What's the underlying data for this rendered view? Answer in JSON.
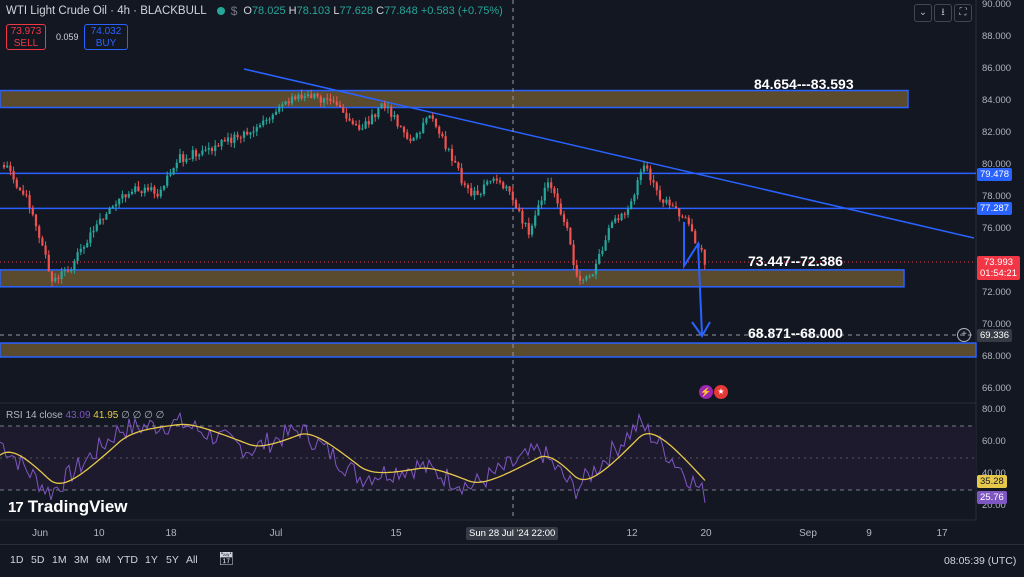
{
  "legend": {
    "symbol": "WTI Light Crude Oil · 4h · BLACKBULL",
    "open_label": "O",
    "open": "78.025",
    "high_label": "H",
    "high": "78.103",
    "low_label": "L",
    "low": "77.628",
    "close_label": "C",
    "close": "77.848",
    "change": "+0.583 (+0.75%)"
  },
  "trade": {
    "sell_price": "73.973",
    "sell_label": "SELL",
    "spread": "0.059",
    "buy_price": "74.032",
    "buy_label": "BUY"
  },
  "zones": {
    "top": "84.654---83.593",
    "mid": "73.447--72.386",
    "low": "68.871--68.000"
  },
  "price_axis": {
    "ticks": [
      "90.000",
      "88.000",
      "86.000",
      "84.000",
      "82.000",
      "80.000",
      "78.000",
      "76.000",
      "74.000",
      "72.000",
      "70.000",
      "68.000",
      "66.000"
    ],
    "line_labels": [
      "79.478",
      "77.287"
    ],
    "current_price": "73.993",
    "countdown": "01:54:21",
    "crosshair_price": "69.336"
  },
  "rsi": {
    "label": "RSI 14 close",
    "value": "43.09",
    "ma_value": "41.95",
    "extra": "∅ ∅ ∅ ∅",
    "ticks": [
      "80.00",
      "60.00",
      "40.00",
      "20.00"
    ],
    "badge_ma": "35.28",
    "badge_rsi": "25.76"
  },
  "time_axis": {
    "ticks": [
      "Jun",
      "10",
      "18",
      "Jul",
      "15",
      "12",
      "20",
      "Sep",
      "9",
      "17"
    ],
    "crosshair": "Sun 28 Jul '24   22:00"
  },
  "timeframes": [
    "1D",
    "5D",
    "1M",
    "3M",
    "6M",
    "YTD",
    "1Y",
    "5Y",
    "All"
  ],
  "clock": "08:05:39 (UTC)",
  "brand": "TradingView",
  "colors": {
    "background": "#131722",
    "bull": "#26a69a",
    "bear": "#ef5350",
    "line": "#2962ff",
    "zone_fill": "#5a4a2e",
    "rsi": "#7e57c2",
    "rsi_ma": "#e6c84a"
  }
}
